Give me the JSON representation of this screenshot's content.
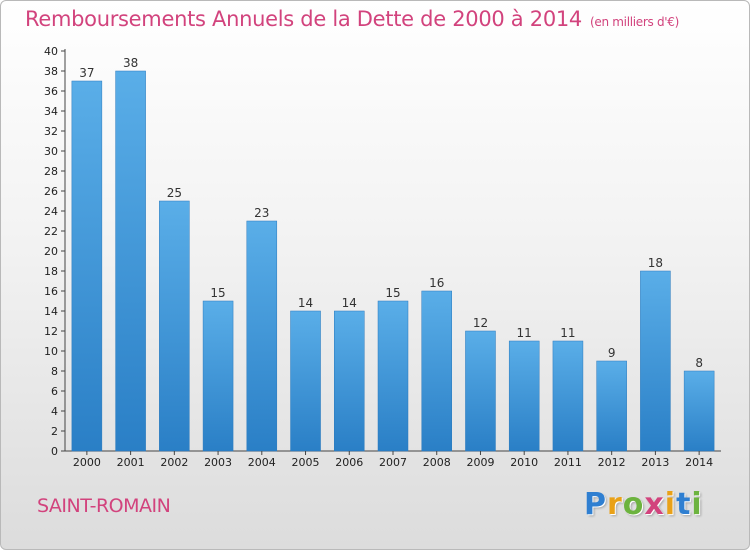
{
  "chart_data": {
    "type": "bar",
    "title": "Remboursements Annuels de la Dette de 2000 à 2014",
    "unit_note": "(en milliers d'€)",
    "categories": [
      "2000",
      "2001",
      "2002",
      "2003",
      "2004",
      "2005",
      "2006",
      "2007",
      "2008",
      "2009",
      "2010",
      "2011",
      "2012",
      "2013",
      "2014"
    ],
    "values": [
      37,
      38,
      25,
      15,
      23,
      14,
      14,
      15,
      16,
      12,
      11,
      11,
      9,
      18,
      8
    ],
    "ylim": [
      0,
      40
    ],
    "ytick_step": 2,
    "xlabel": "",
    "ylabel": "",
    "grid": false,
    "bar_color": "#3f97dc"
  },
  "footer": {
    "commune": "SAINT-ROMAIN",
    "logo": {
      "letters": [
        "P",
        "r",
        "o",
        "x",
        "i",
        "t",
        "i"
      ],
      "colors": [
        "#2f7fd1",
        "#e9a118",
        "#6cb33e",
        "#d2437d",
        "#e9a118",
        "#2f7fd1",
        "#6cb33e"
      ]
    }
  }
}
